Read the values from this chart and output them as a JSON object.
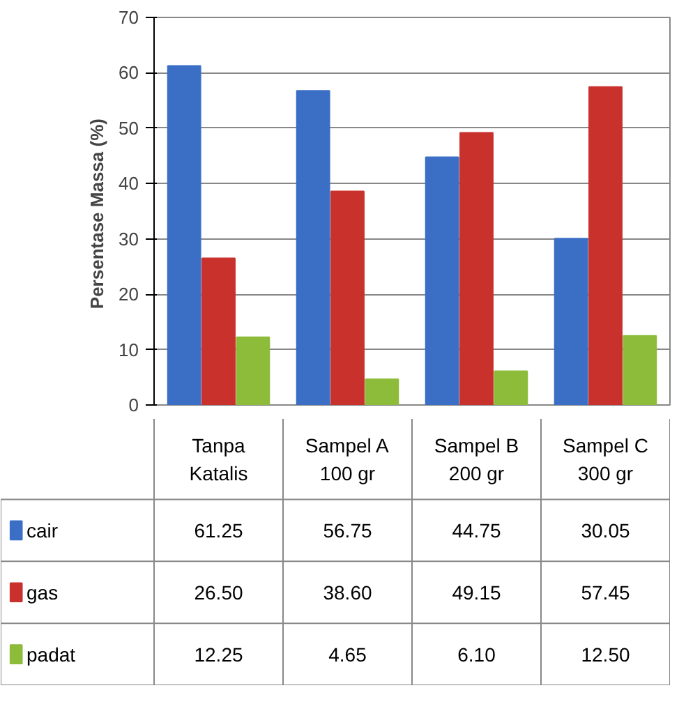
{
  "chart_data": {
    "type": "bar",
    "ylabel": "Persentase Massa  (%)",
    "categories": [
      "Tanpa\nKatalis",
      "Sampel A\n100 gr",
      "Sampel B\n200 gr",
      "Sampel C\n300 gr"
    ],
    "series": [
      {
        "name": "cair",
        "color": "#3b6fc6",
        "values": [
          61.25,
          56.75,
          44.75,
          30.05
        ],
        "value_labels": [
          "61.25",
          "56.75",
          "44.75",
          "30.05"
        ]
      },
      {
        "name": "gas",
        "color": "#c9312d",
        "values": [
          26.5,
          38.6,
          49.15,
          57.45
        ],
        "value_labels": [
          "26.50",
          "38.60",
          "49.15",
          "57.45"
        ]
      },
      {
        "name": "padat",
        "color": "#8dbb3a",
        "values": [
          12.25,
          4.65,
          6.1,
          12.5
        ],
        "value_labels": [
          "12.25",
          "4.65",
          "6.10",
          "12.50"
        ]
      }
    ],
    "ylim": [
      0,
      70
    ],
    "yticks": [
      0,
      10,
      20,
      30,
      40,
      50,
      60,
      70
    ],
    "grid": "y",
    "legend": "bottom"
  }
}
